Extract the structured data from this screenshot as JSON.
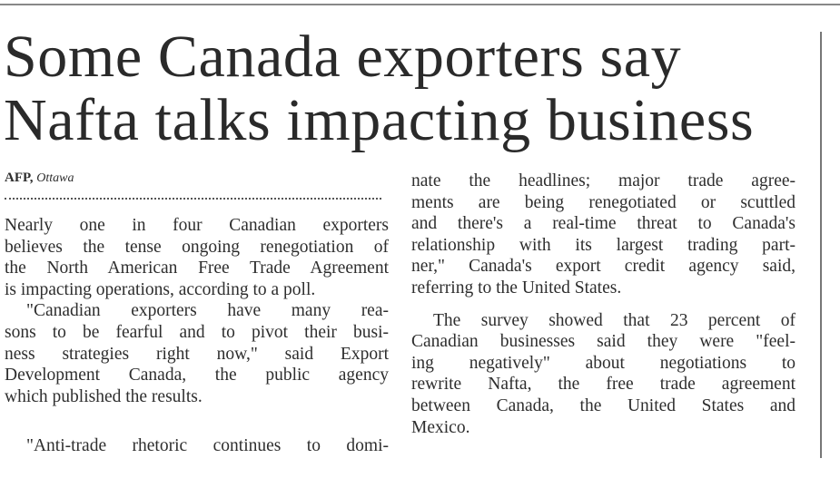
{
  "headline": {
    "line1": "Some Canada exporters say",
    "line2": "Nafta talks impacting business"
  },
  "byline": {
    "agency": "AFP,",
    "location": "Ottawa"
  },
  "columns": {
    "left": [
      {
        "lines": [
          "Nearly one in four Canadian exporters",
          "believes the tense ongoing renegotiation of",
          "the North American Free Trade Agreement",
          "is impacting operations, according to a poll."
        ]
      },
      {
        "lines": [
          "\"Canadian exporters have many rea-",
          "sons to be fearful and to pivot their busi-",
          "ness strategies right now,\" said Export",
          "Development Canada, the public agency",
          "which published the results."
        ]
      },
      {
        "lines": [
          "\"Anti-trade rhetoric continues to domi-"
        ],
        "continues": true
      }
    ],
    "right": [
      {
        "lines": [
          "nate the headlines; major trade agree-",
          "ments are being renegotiated or scuttled",
          "and there's a real-time threat to Canada's",
          "relationship with its largest trading part-",
          "ner,\" Canada's export credit agency said,",
          "referring to the United States."
        ],
        "continuation": true
      },
      {
        "lines": [
          "The survey showed that 23 percent of",
          "Canadian businesses said they were \"feel-",
          "ing negatively\" about negotiations to",
          "rewrite Nafta, the free trade agreement",
          "between Canada, the United States and",
          "Mexico."
        ]
      }
    ]
  }
}
